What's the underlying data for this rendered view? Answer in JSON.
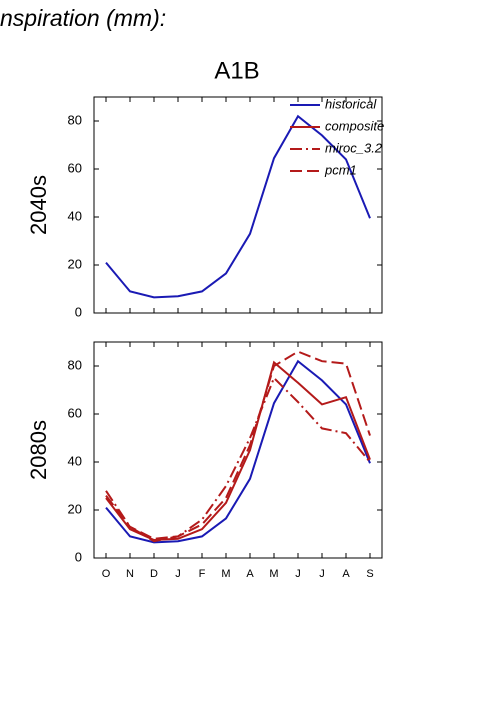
{
  "title": "nspiration (mm):",
  "scenario": "A1B",
  "chart_data": [
    {
      "type": "line",
      "ylabel": "2040s",
      "categories": [
        null,
        null,
        null,
        null,
        null,
        null,
        null,
        null,
        null,
        null,
        null,
        null
      ],
      "ylim": [
        0,
        90
      ],
      "yticks": [
        0,
        20,
        40,
        60,
        80
      ],
      "series": [
        {
          "name": "historical",
          "color": "#1a1ab4",
          "dash": "solid",
          "values": [
            21,
            9,
            6.5,
            7,
            9,
            16.5,
            33,
            64.5,
            82,
            74,
            64,
            39.5
          ]
        }
      ]
    },
    {
      "type": "line",
      "ylabel": "2080s",
      "categories": [
        "O",
        "N",
        "D",
        "J",
        "F",
        "M",
        "A",
        "M",
        "J",
        "J",
        "A",
        "S"
      ],
      "ylim": [
        0,
        90
      ],
      "yticks": [
        0,
        20,
        40,
        60,
        80
      ],
      "legend": "upper right",
      "series": [
        {
          "name": "historical",
          "color": "#1a1ab4",
          "dash": "solid",
          "values": [
            21,
            9,
            6.5,
            7,
            9,
            16.5,
            33,
            64.5,
            82,
            74,
            64,
            39.5
          ]
        },
        {
          "name": "composite",
          "color": "#b41a1a",
          "dash": "solid",
          "values": [
            25,
            12,
            7.5,
            8,
            12,
            23,
            45,
            81.5,
            73,
            64,
            67,
            41
          ]
        },
        {
          "name": "miroc_3.2",
          "color": "#b41a1a",
          "dash": "dashdot",
          "values": [
            28,
            13,
            7,
            9,
            16,
            30,
            50,
            75,
            65,
            54,
            52,
            40
          ]
        },
        {
          "name": "pcm1",
          "color": "#b41a1a",
          "dash": "dash",
          "values": [
            26,
            13,
            8,
            9,
            14,
            25,
            47,
            80,
            86,
            82,
            81,
            51
          ]
        }
      ]
    }
  ]
}
